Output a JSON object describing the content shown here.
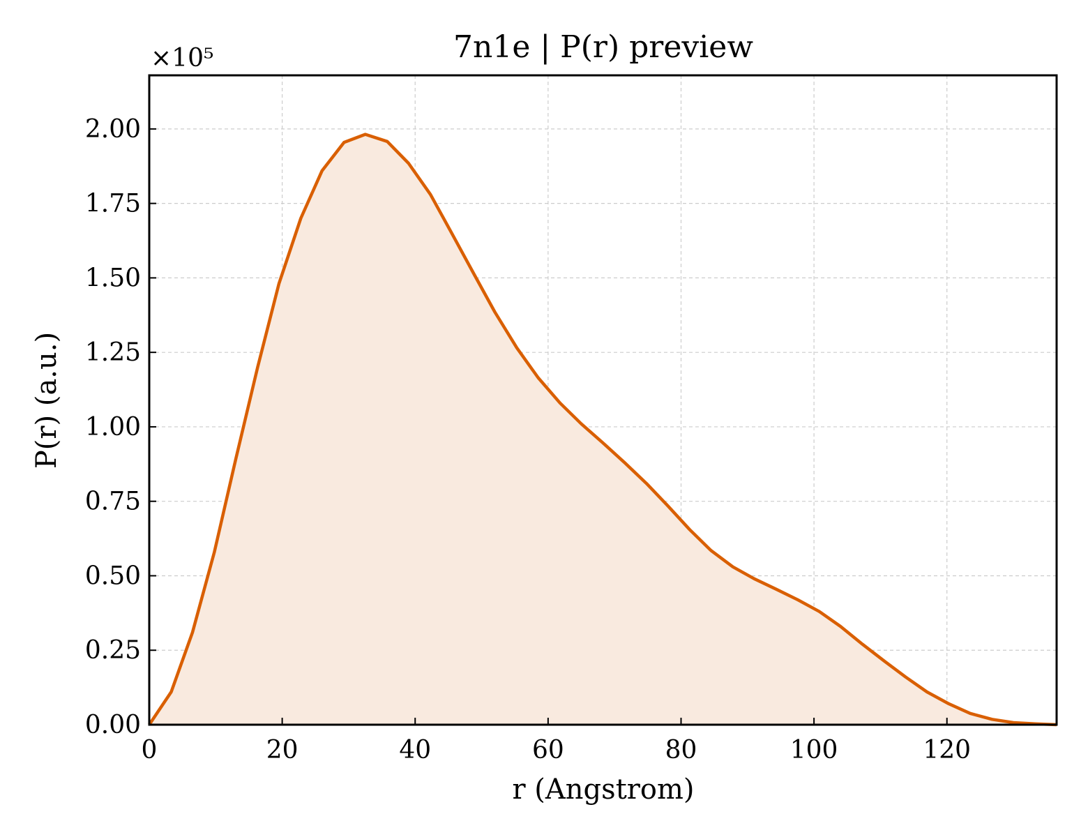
{
  "chart_data": {
    "type": "line",
    "title": "7n1e | P(r) preview",
    "xlabel": "r (Angstrom)",
    "ylabel": "P(r) (a.u.)",
    "y_offset_label": "×10⁵",
    "y_scale": 100000,
    "xlim": [
      0,
      136.5
    ],
    "ylim": [
      0,
      2.18
    ],
    "x_ticks": [
      0,
      20,
      40,
      60,
      80,
      100,
      120
    ],
    "y_ticks": [
      0.0,
      0.25,
      0.5,
      0.75,
      1.0,
      1.25,
      1.5,
      1.75,
      2.0
    ],
    "x_tick_labels": [
      "0",
      "20",
      "40",
      "60",
      "80",
      "100",
      "120"
    ],
    "y_tick_labels": [
      "0.00",
      "0.25",
      "0.50",
      "0.75",
      "1.00",
      "1.25",
      "1.50",
      "1.75",
      "2.00"
    ],
    "grid": true,
    "line_color": "#d95f02",
    "fill_color": "#f9eadf",
    "series": [
      {
        "x": [
          0,
          3.3,
          6.5,
          9.8,
          13.0,
          16.3,
          19.5,
          22.8,
          26.0,
          29.3,
          32.5,
          35.8,
          39.0,
          42.3,
          45.5,
          48.8,
          52.0,
          55.3,
          58.5,
          61.8,
          65.0,
          68.3,
          71.5,
          74.8,
          78.0,
          81.3,
          84.5,
          87.8,
          91.0,
          94.3,
          97.5,
          100.8,
          104.0,
          107.3,
          110.5,
          113.8,
          117.0,
          120.3,
          123.5,
          126.8,
          130.0,
          133.3,
          136.5
        ],
        "y": [
          0.0,
          0.11,
          0.31,
          0.58,
          0.89,
          1.2,
          1.48,
          1.7,
          1.86,
          1.955,
          1.982,
          1.958,
          1.885,
          1.78,
          1.65,
          1.515,
          1.385,
          1.265,
          1.165,
          1.08,
          1.01,
          0.945,
          0.88,
          0.81,
          0.735,
          0.655,
          0.585,
          0.53,
          0.49,
          0.455,
          0.42,
          0.38,
          0.33,
          0.27,
          0.215,
          0.16,
          0.11,
          0.07,
          0.038,
          0.018,
          0.007,
          0.003,
          0.0
        ]
      }
    ]
  }
}
